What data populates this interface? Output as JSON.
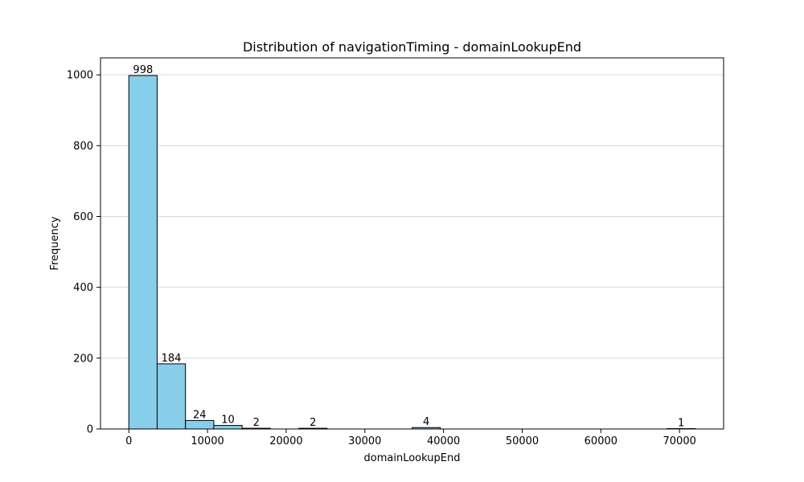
{
  "chart_data": {
    "type": "bar",
    "title": "Distribution of navigationTiming - domainLookupEnd",
    "xlabel": "domainLookupEnd",
    "ylabel": "Frequency",
    "xlim": [
      -3600,
      75600
    ],
    "ylim": [
      0,
      1048
    ],
    "x_ticks": [
      0,
      10000,
      20000,
      30000,
      40000,
      50000,
      60000,
      70000
    ],
    "y_ticks": [
      0,
      200,
      400,
      600,
      800,
      1000
    ],
    "grid": "y",
    "bar_color": "#87ceeb",
    "edge_color": "#000000",
    "bins": [
      {
        "start": 0,
        "end": 3600,
        "value": 998
      },
      {
        "start": 3600,
        "end": 7200,
        "value": 184
      },
      {
        "start": 7200,
        "end": 10800,
        "value": 24
      },
      {
        "start": 10800,
        "end": 14400,
        "value": 10
      },
      {
        "start": 14400,
        "end": 18000,
        "value": 2
      },
      {
        "start": 18000,
        "end": 21600,
        "value": 0
      },
      {
        "start": 21600,
        "end": 25200,
        "value": 2
      },
      {
        "start": 25200,
        "end": 28800,
        "value": 0
      },
      {
        "start": 28800,
        "end": 32400,
        "value": 0
      },
      {
        "start": 32400,
        "end": 36000,
        "value": 0
      },
      {
        "start": 36000,
        "end": 39600,
        "value": 4
      },
      {
        "start": 39600,
        "end": 43200,
        "value": 0
      },
      {
        "start": 43200,
        "end": 46800,
        "value": 0
      },
      {
        "start": 46800,
        "end": 50400,
        "value": 0
      },
      {
        "start": 50400,
        "end": 54000,
        "value": 0
      },
      {
        "start": 54000,
        "end": 57600,
        "value": 0
      },
      {
        "start": 57600,
        "end": 61200,
        "value": 0
      },
      {
        "start": 61200,
        "end": 64800,
        "value": 0
      },
      {
        "start": 64800,
        "end": 68400,
        "value": 0
      },
      {
        "start": 68400,
        "end": 72000,
        "value": 1
      }
    ]
  }
}
